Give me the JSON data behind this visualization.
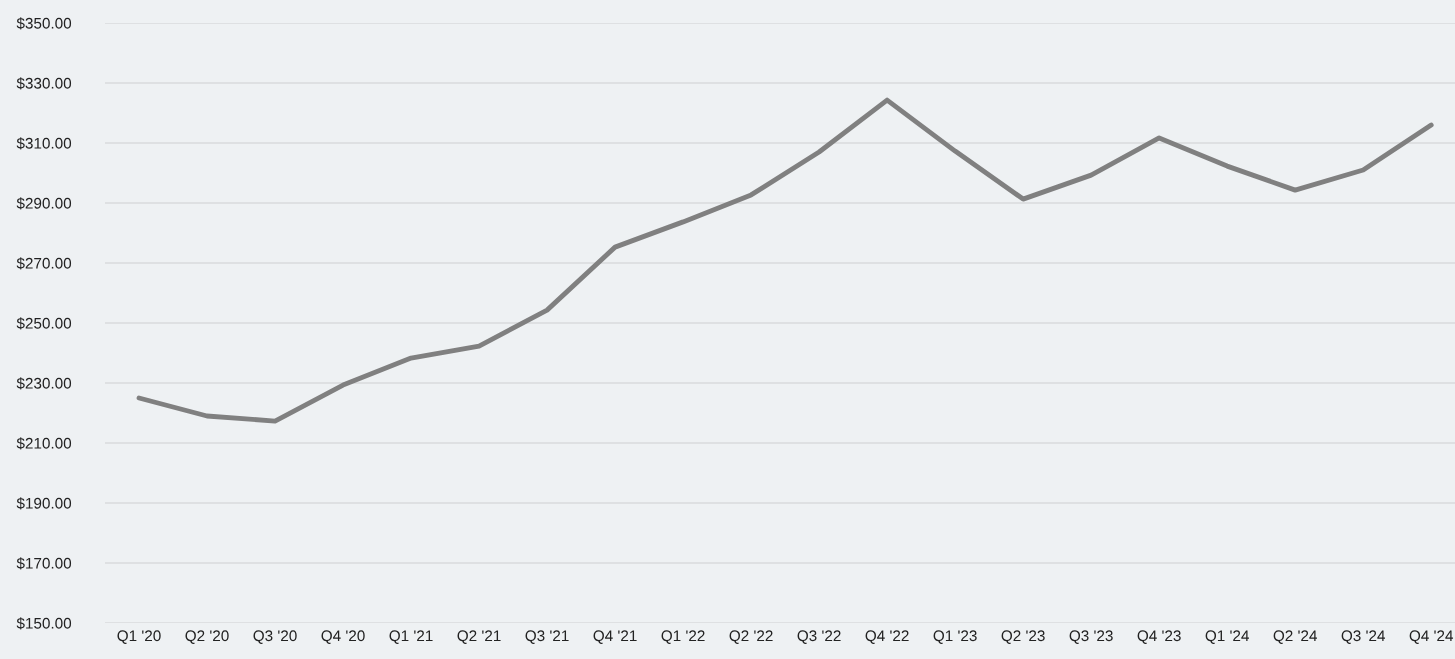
{
  "chart_data": {
    "type": "line",
    "categories": [
      "Q1 '20",
      "Q2 '20",
      "Q3 '20",
      "Q4 '20",
      "Q1 '21",
      "Q2 '21",
      "Q3 '21",
      "Q4 '21",
      "Q1 '22",
      "Q2 '22",
      "Q3 '22",
      "Q4 '22",
      "Q1 '23",
      "Q2 '23",
      "Q3 '23",
      "Q4 '23",
      "Q1 '24",
      "Q2 '24",
      "Q3 '24",
      "Q4 '24"
    ],
    "series": [
      {
        "color": "#808080",
        "values": [
          225.0,
          219.0,
          217.3,
          229.3,
          238.3,
          242.3,
          254.3,
          275.3,
          283.7,
          292.7,
          307.0,
          324.3,
          307.3,
          291.3,
          299.3,
          311.7,
          302.3,
          294.3,
          301.0,
          316.0
        ]
      }
    ],
    "ylim": [
      150,
      350
    ],
    "yticks": [
      {
        "value": 150,
        "label": "$150.00"
      },
      {
        "value": 170,
        "label": "$170.00"
      },
      {
        "value": 190,
        "label": "$190.00"
      },
      {
        "value": 210,
        "label": "$210.00"
      },
      {
        "value": 230,
        "label": "$230.00"
      },
      {
        "value": 250,
        "label": "$250.00"
      },
      {
        "value": 270,
        "label": "$270.00"
      },
      {
        "value": 290,
        "label": "$290.00"
      },
      {
        "value": 310,
        "label": "$310.00"
      },
      {
        "value": 330,
        "label": "$330.00"
      },
      {
        "value": 350,
        "label": "$350.00"
      }
    ],
    "grid": "y",
    "marker": "none",
    "line_style": "solid"
  }
}
